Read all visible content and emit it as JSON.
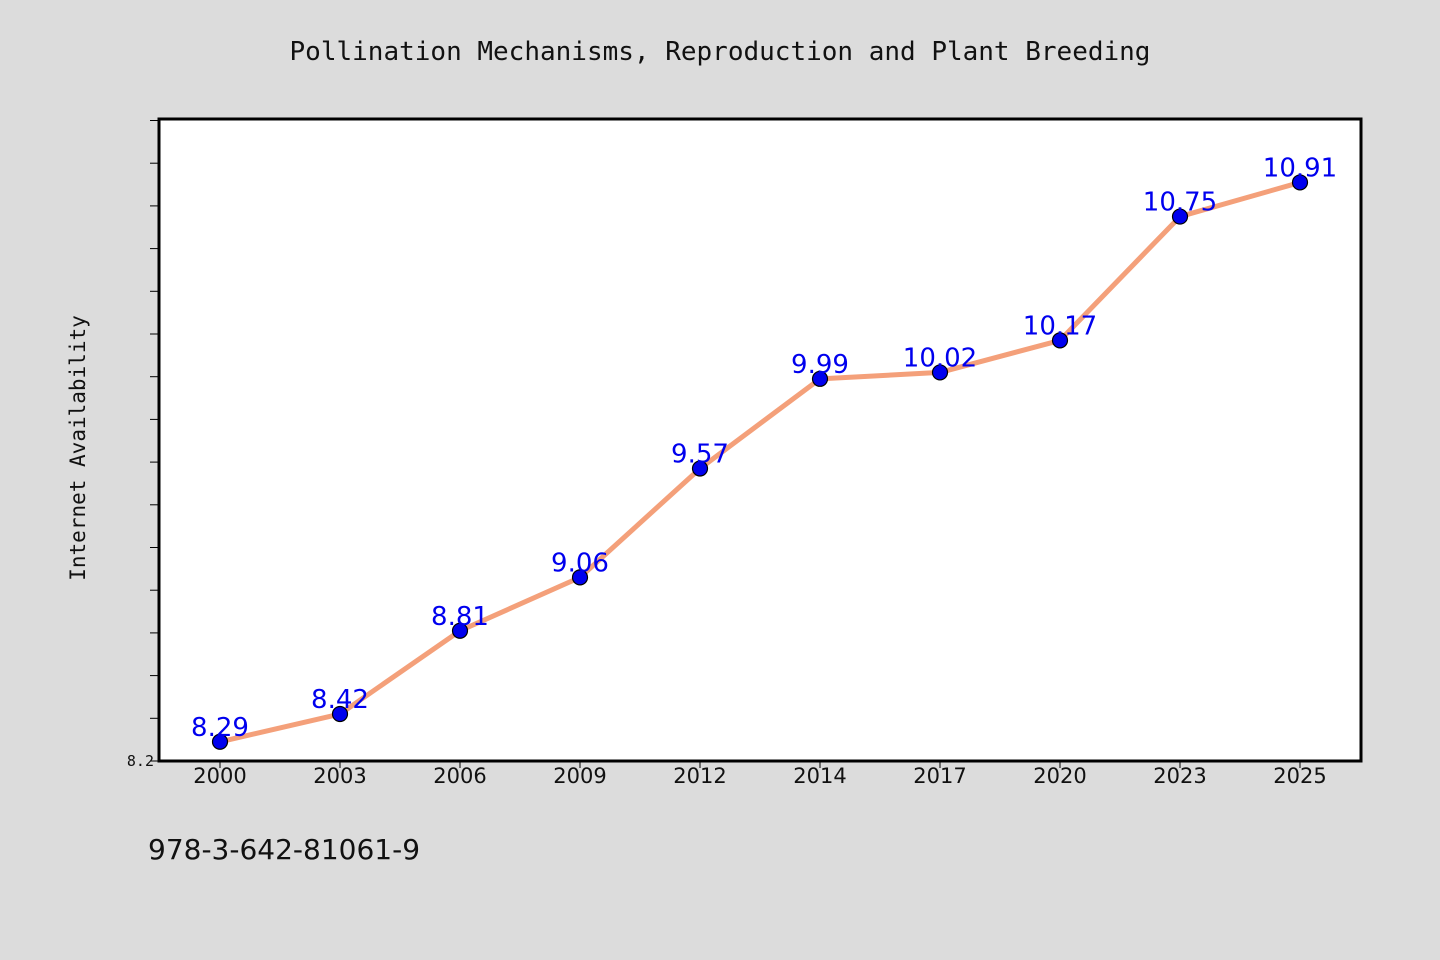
{
  "chart_data": {
    "type": "line",
    "title": "Pollination Mechanisms, Reproduction and Plant Breeding",
    "xlabel": "",
    "ylabel": "Internet Availability",
    "categories": [
      "2000",
      "2003",
      "2006",
      "2009",
      "2012",
      "2014",
      "2017",
      "2020",
      "2023",
      "2025"
    ],
    "series": [
      {
        "values": [
          8.29,
          8.42,
          8.81,
          9.06,
          9.57,
          9.99,
          10.02,
          10.17,
          10.75,
          10.91
        ],
        "labels": [
          "8.29",
          "8.42",
          "8.81",
          "9.06",
          "9.57",
          "9.99",
          "10.02",
          "10.17",
          "10.75",
          "10.91"
        ],
        "line_color": "#f4a07a",
        "marker_color": "#0000ee",
        "label_color": "#0000ee"
      }
    ],
    "ylim": [
      8.2,
      11.2
    ],
    "y_tick_labels": [
      "8.2"
    ],
    "y_minor_step": 0.2,
    "grid": false,
    "legend": "none"
  },
  "footer": {
    "isbn": "978-3-642-81061-9"
  }
}
